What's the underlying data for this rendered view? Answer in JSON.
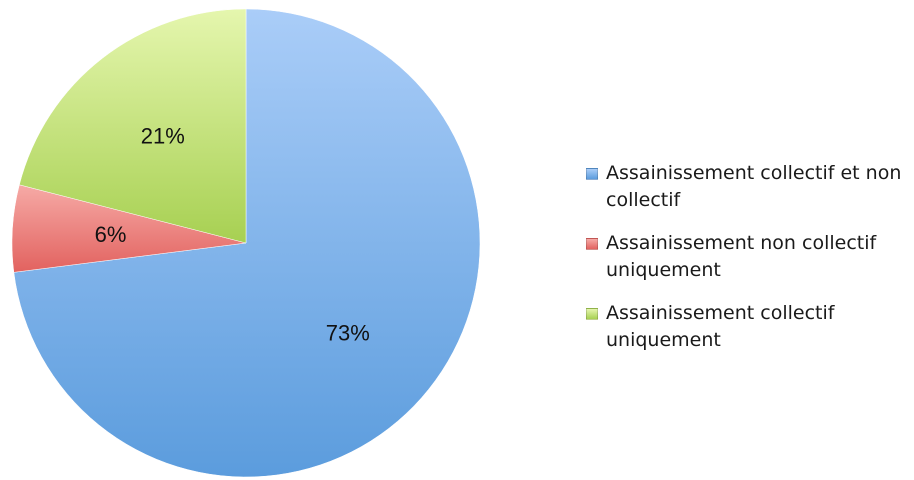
{
  "chart_data": {
    "type": "pie",
    "title": "",
    "categories": [
      "Assainissement collectif et non collectif",
      "Assainissement non collectif uniquement",
      "Assainissement collectif uniquement"
    ],
    "values": [
      73,
      6,
      21
    ],
    "value_labels": [
      "73%",
      "6%",
      "21%"
    ],
    "colors": [
      {
        "light": "#aacdf8",
        "dark": "#5b9cdd"
      },
      {
        "light": "#f6aaa6",
        "dark": "#e2625f"
      },
      {
        "light": "#e5f6ae",
        "dark": "#a7d052"
      }
    ],
    "legend_position": "right"
  }
}
